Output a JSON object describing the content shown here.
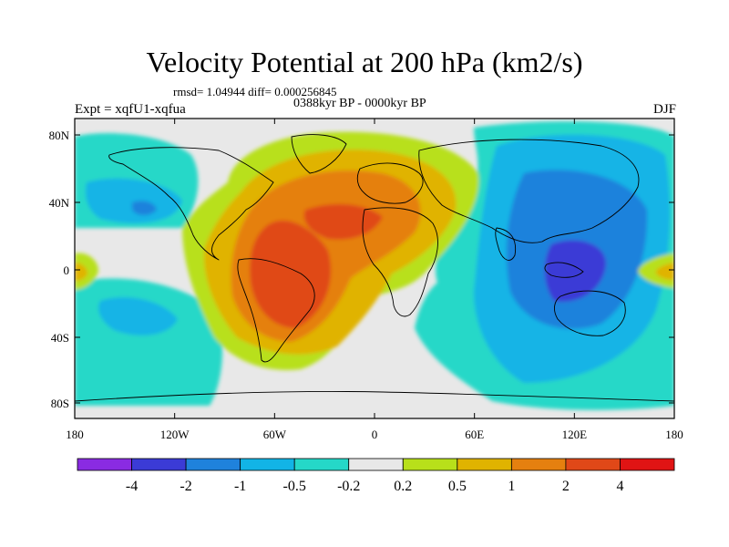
{
  "title": "Velocity Potential at 200 hPa (km2/s)",
  "stats": "rmsd= 1.04944 diff= 0.000256845",
  "experiment": "Expt = xqfU1-xqfua",
  "period": "0388kyr BP - 0000kyr BP",
  "season": "DJF",
  "lat_ticks": [
    "80N",
    "40N",
    "0",
    "40S",
    "80S"
  ],
  "lon_ticks": [
    "180",
    "120W",
    "60W",
    "0",
    "60E",
    "120E",
    "180"
  ],
  "colorbar": {
    "labels": [
      "-4",
      "-2",
      "-1",
      "-0.5",
      "-0.2",
      "0.2",
      "0.5",
      "1",
      "2",
      "4"
    ],
    "colors": [
      "#8a2be2",
      "#3b3bd6",
      "#1f82dc",
      "#12b4e6",
      "#25d8c8",
      "#e8e8e8",
      "#b8e01a",
      "#e0b300",
      "#e5800f",
      "#e04818",
      "#e01414"
    ]
  }
}
